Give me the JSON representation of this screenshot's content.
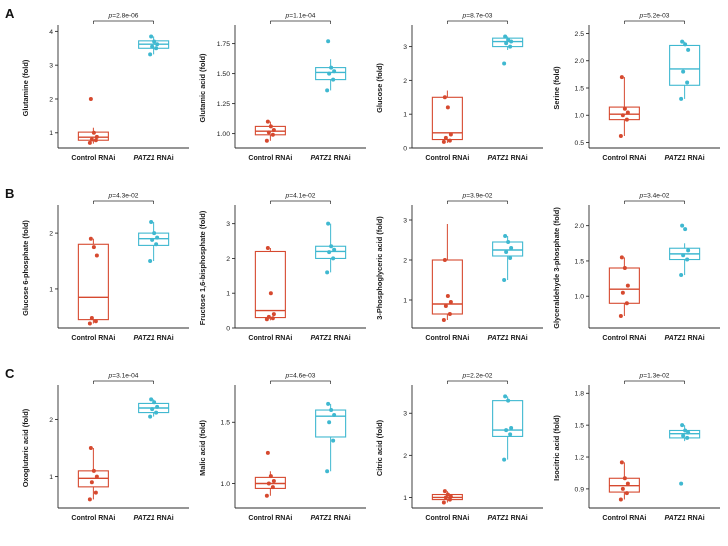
{
  "figure": {
    "rows": [
      {
        "label": "A"
      },
      {
        "label": "B"
      },
      {
        "label": "C"
      }
    ]
  },
  "colors": {
    "control": "#d6492f",
    "patz1": "#3fb8d0",
    "axis": "#2b2b2b",
    "text": "#1a1a1a"
  },
  "categories": [
    {
      "parts": [
        {
          "t": "Control RNAi",
          "i": false
        }
      ]
    },
    {
      "parts": [
        {
          "t": "PATZ1",
          "i": true
        },
        {
          "t": " RNAi",
          "i": false
        }
      ]
    }
  ],
  "chart_data": [
    {
      "type": "box",
      "row": "A",
      "ylabel": "Glutamine (fold)",
      "p_value": "2.8e-06",
      "ylim": [
        0.55,
        4.1
      ],
      "yticks": [
        1,
        2,
        3,
        4
      ],
      "ytick_labels": [
        "1",
        "2",
        "3",
        "4"
      ],
      "groups": [
        {
          "name": "Control RNAi",
          "role": "control",
          "box": {
            "lo": 0.68,
            "q1": 0.78,
            "med": 0.87,
            "q3": 1.02,
            "hi": 1.15
          },
          "points": [
            0.7,
            0.78,
            0.8,
            0.88,
            1.0,
            2.0
          ]
        },
        {
          "name": "PATZ1 RNAi",
          "role": "patz1",
          "box": {
            "lo": 3.32,
            "q1": 3.5,
            "med": 3.62,
            "q3": 3.72,
            "hi": 3.85
          },
          "points": [
            3.32,
            3.5,
            3.55,
            3.62,
            3.7,
            3.85
          ]
        }
      ]
    },
    {
      "type": "box",
      "row": "A",
      "ylabel": "Glutamic acid (fold)",
      "p_value": "1.1e-04",
      "ylim": [
        0.88,
        1.88
      ],
      "yticks": [
        1.0,
        1.25,
        1.5,
        1.75
      ],
      "ytick_labels": [
        "1.00",
        "1.25",
        "1.50",
        "1.75"
      ],
      "groups": [
        {
          "name": "Control RNAi",
          "role": "control",
          "box": {
            "lo": 0.94,
            "q1": 0.99,
            "med": 1.02,
            "q3": 1.06,
            "hi": 1.1
          },
          "points": [
            0.94,
            0.99,
            1.01,
            1.03,
            1.06,
            1.1
          ]
        },
        {
          "name": "PATZ1 RNAi",
          "role": "patz1",
          "box": {
            "lo": 1.36,
            "q1": 1.45,
            "med": 1.51,
            "q3": 1.55,
            "hi": 1.62
          },
          "points": [
            1.36,
            1.45,
            1.5,
            1.52,
            1.55,
            1.77
          ]
        }
      ]
    },
    {
      "type": "box",
      "row": "A",
      "ylabel": "Glucose (fold)",
      "p_value": "8.7e-03",
      "ylim": [
        0,
        3.55
      ],
      "yticks": [
        0,
        1,
        2,
        3
      ],
      "ytick_labels": [
        "0",
        "1",
        "2",
        "3"
      ],
      "groups": [
        {
          "name": "Control RNAi",
          "role": "control",
          "box": {
            "lo": 0.15,
            "q1": 0.25,
            "med": 0.45,
            "q3": 1.5,
            "hi": 1.7
          },
          "points": [
            0.18,
            0.22,
            0.3,
            0.4,
            1.2,
            1.5
          ]
        },
        {
          "name": "PATZ1 RNAi",
          "role": "patz1",
          "box": {
            "lo": 2.9,
            "q1": 3.0,
            "med": 3.15,
            "q3": 3.25,
            "hi": 3.3
          },
          "points": [
            2.5,
            3.0,
            3.1,
            3.15,
            3.2,
            3.3
          ]
        }
      ]
    },
    {
      "type": "box",
      "row": "A",
      "ylabel": "Serine (fold)",
      "p_value": "5.2e-03",
      "ylim": [
        0.4,
        2.6
      ],
      "yticks": [
        0.5,
        1.0,
        1.5,
        2.0,
        2.5
      ],
      "ytick_labels": [
        "0.5",
        "1.0",
        "1.5",
        "2.0",
        "2.5"
      ],
      "groups": [
        {
          "name": "Control RNAi",
          "role": "control",
          "box": {
            "lo": 0.62,
            "q1": 0.92,
            "med": 1.02,
            "q3": 1.15,
            "hi": 1.7
          },
          "points": [
            0.62,
            0.92,
            1.0,
            1.05,
            1.12,
            1.7
          ]
        },
        {
          "name": "PATZ1 RNAi",
          "role": "patz1",
          "box": {
            "lo": 1.3,
            "q1": 1.55,
            "med": 1.85,
            "q3": 2.28,
            "hi": 2.35
          },
          "points": [
            1.3,
            1.6,
            1.8,
            2.2,
            2.3,
            2.35
          ]
        }
      ]
    },
    {
      "type": "box",
      "row": "B",
      "ylabel": "Glucose 6-phosphate (fold)",
      "p_value": "4.3e-02",
      "ylim": [
        0.3,
        2.45
      ],
      "yticks": [
        1,
        2
      ],
      "ytick_labels": [
        "1",
        "2"
      ],
      "groups": [
        {
          "name": "Control RNAi",
          "role": "control",
          "box": {
            "lo": 0.38,
            "q1": 0.45,
            "med": 0.85,
            "q3": 1.8,
            "hi": 1.9
          },
          "points": [
            0.38,
            0.42,
            0.48,
            1.6,
            1.75,
            1.9
          ]
        },
        {
          "name": "PATZ1 RNAi",
          "role": "patz1",
          "box": {
            "lo": 1.5,
            "q1": 1.78,
            "med": 1.9,
            "q3": 2.0,
            "hi": 2.2
          },
          "points": [
            1.5,
            1.8,
            1.88,
            1.92,
            2.0,
            2.2
          ]
        }
      ]
    },
    {
      "type": "box",
      "row": "B",
      "ylabel": "Fructose 1,6-bisphosphate (fold)",
      "p_value": "4.1e-02",
      "ylim": [
        0,
        3.45
      ],
      "yticks": [
        0,
        1,
        2,
        3
      ],
      "ytick_labels": [
        "0",
        "1",
        "2",
        "3"
      ],
      "groups": [
        {
          "name": "Control RNAi",
          "role": "control",
          "box": {
            "lo": 0.22,
            "q1": 0.3,
            "med": 0.5,
            "q3": 2.2,
            "hi": 2.3
          },
          "points": [
            0.25,
            0.28,
            0.32,
            0.4,
            1.0,
            2.3
          ]
        },
        {
          "name": "PATZ1 RNAi",
          "role": "patz1",
          "box": {
            "lo": 1.6,
            "q1": 2.0,
            "med": 2.2,
            "q3": 2.35,
            "hi": 3.0
          },
          "points": [
            1.6,
            2.0,
            2.18,
            2.25,
            2.35,
            3.0
          ]
        }
      ]
    },
    {
      "type": "box",
      "row": "B",
      "ylabel": "3-Phosphoglyceric acid (fold)",
      "p_value": "3.9e-02",
      "ylim": [
        0.3,
        3.3
      ],
      "yticks": [
        1,
        2,
        3
      ],
      "ytick_labels": [
        "1",
        "2",
        "3"
      ],
      "groups": [
        {
          "name": "Control RNAi",
          "role": "control",
          "box": {
            "lo": 0.5,
            "q1": 0.65,
            "med": 0.9,
            "q3": 2.0,
            "hi": 2.9
          },
          "points": [
            0.5,
            0.65,
            0.85,
            0.95,
            1.1,
            2.0
          ]
        },
        {
          "name": "PATZ1 RNAi",
          "role": "patz1",
          "box": {
            "lo": 1.5,
            "q1": 2.1,
            "med": 2.25,
            "q3": 2.45,
            "hi": 2.6
          },
          "points": [
            1.5,
            2.05,
            2.2,
            2.3,
            2.45,
            2.6
          ]
        }
      ]
    },
    {
      "type": "box",
      "row": "B",
      "ylabel": "Glyceraldehyde 3-phosphate (fold)",
      "p_value": "3.4e-02",
      "ylim": [
        0.55,
        2.25
      ],
      "yticks": [
        1.0,
        1.5,
        2.0
      ],
      "ytick_labels": [
        "1.0",
        "1.5",
        "2.0"
      ],
      "groups": [
        {
          "name": "Control RNAi",
          "role": "control",
          "box": {
            "lo": 0.72,
            "q1": 0.9,
            "med": 1.1,
            "q3": 1.4,
            "hi": 1.55
          },
          "points": [
            0.72,
            0.9,
            1.05,
            1.15,
            1.4,
            1.55
          ]
        },
        {
          "name": "PATZ1 RNAi",
          "role": "patz1",
          "box": {
            "lo": 1.3,
            "q1": 1.52,
            "med": 1.6,
            "q3": 1.68,
            "hi": 1.75
          },
          "points": [
            1.3,
            1.52,
            1.58,
            1.65,
            1.95,
            2.0
          ]
        }
      ]
    },
    {
      "type": "box",
      "row": "C",
      "ylabel": "Oxoglutaric acid (fold)",
      "p_value": "3.1e-04",
      "ylim": [
        0.45,
        2.55
      ],
      "yticks": [
        1,
        2
      ],
      "ytick_labels": [
        "1",
        "2"
      ],
      "groups": [
        {
          "name": "Control RNAi",
          "role": "control",
          "box": {
            "lo": 0.6,
            "q1": 0.82,
            "med": 0.97,
            "q3": 1.1,
            "hi": 1.5
          },
          "points": [
            0.6,
            0.72,
            0.9,
            1.0,
            1.1,
            1.5
          ]
        },
        {
          "name": "PATZ1 RNAi",
          "role": "patz1",
          "box": {
            "lo": 2.05,
            "q1": 2.12,
            "med": 2.2,
            "q3": 2.28,
            "hi": 2.35
          },
          "points": [
            2.05,
            2.12,
            2.18,
            2.22,
            2.3,
            2.35
          ]
        }
      ]
    },
    {
      "type": "box",
      "row": "C",
      "ylabel": "Malic acid (fold)",
      "p_value": "4.6e-03",
      "ylim": [
        0.8,
        1.78
      ],
      "yticks": [
        1.0,
        1.5
      ],
      "ytick_labels": [
        "1.0",
        "1.5"
      ],
      "groups": [
        {
          "name": "Control RNAi",
          "role": "control",
          "box": {
            "lo": 0.9,
            "q1": 0.96,
            "med": 1.0,
            "q3": 1.05,
            "hi": 1.1
          },
          "points": [
            0.9,
            0.97,
            1.0,
            1.02,
            1.06,
            1.25
          ]
        },
        {
          "name": "PATZ1 RNAi",
          "role": "patz1",
          "box": {
            "lo": 1.1,
            "q1": 1.38,
            "med": 1.55,
            "q3": 1.6,
            "hi": 1.65
          },
          "points": [
            1.1,
            1.35,
            1.5,
            1.56,
            1.6,
            1.65
          ]
        }
      ]
    },
    {
      "type": "box",
      "row": "C",
      "ylabel": "Citric acid (fold)",
      "p_value": "2.2e-02",
      "ylim": [
        0.75,
        3.6
      ],
      "yticks": [
        1,
        2,
        3
      ],
      "ytick_labels": [
        "1",
        "2",
        "3"
      ],
      "groups": [
        {
          "name": "Control RNAi",
          "role": "control",
          "box": {
            "lo": 0.88,
            "q1": 0.95,
            "med": 1.0,
            "q3": 1.07,
            "hi": 1.15
          },
          "points": [
            0.88,
            0.95,
            1.0,
            1.02,
            1.07,
            1.15
          ]
        },
        {
          "name": "PATZ1 RNAi",
          "role": "patz1",
          "box": {
            "lo": 1.9,
            "q1": 2.45,
            "med": 2.6,
            "q3": 3.3,
            "hi": 3.4
          },
          "points": [
            1.9,
            2.5,
            2.6,
            2.65,
            3.3,
            3.4
          ]
        }
      ]
    },
    {
      "type": "box",
      "row": "C",
      "ylabel": "Isocitric acid (fold)",
      "p_value": "1.3e-02",
      "ylim": [
        0.72,
        1.85
      ],
      "yticks": [
        0.9,
        1.2,
        1.5,
        1.8
      ],
      "ytick_labels": [
        "0.9",
        "1.2",
        "1.5",
        "1.8"
      ],
      "groups": [
        {
          "name": "Control RNAi",
          "role": "control",
          "box": {
            "lo": 0.8,
            "q1": 0.87,
            "med": 0.93,
            "q3": 1.0,
            "hi": 1.15
          },
          "points": [
            0.8,
            0.86,
            0.9,
            0.95,
            1.0,
            1.15
          ]
        },
        {
          "name": "PATZ1 RNAi",
          "role": "patz1",
          "box": {
            "lo": 1.35,
            "q1": 1.38,
            "med": 1.42,
            "q3": 1.45,
            "hi": 1.5
          },
          "points": [
            0.95,
            1.38,
            1.4,
            1.43,
            1.45,
            1.5
          ]
        }
      ]
    }
  ]
}
